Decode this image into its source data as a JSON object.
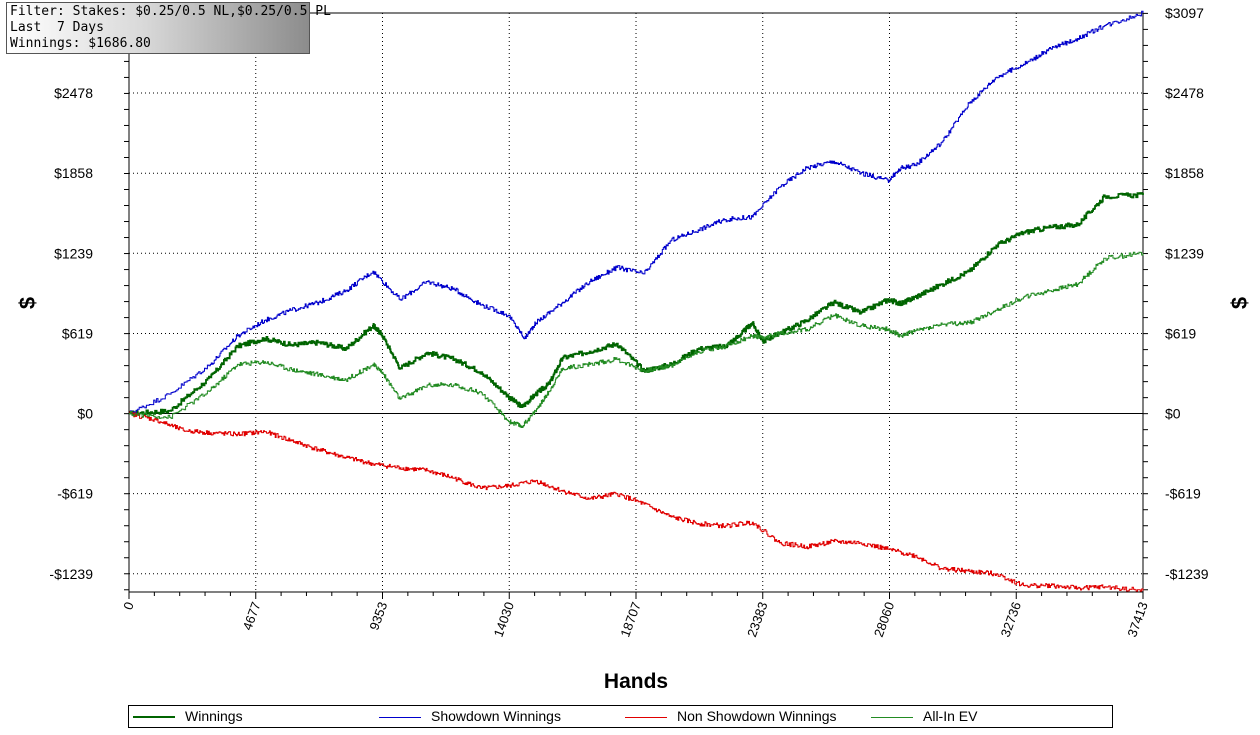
{
  "filter": {
    "line1": "Filter: Stakes: $0.25/0.5 NL,$0.25/0.5 PL",
    "line2": "Last  7 Days",
    "line3": "Winnings: $1686.80"
  },
  "chart_data": {
    "type": "line",
    "xlabel": "Hands",
    "ylabel": "$",
    "xlim": [
      0,
      37413
    ],
    "ylim": [
      -1380,
      3097
    ],
    "x_ticks": [
      0,
      4677,
      9353,
      14030,
      18707,
      23383,
      28060,
      32736,
      37413
    ],
    "y_ticks": [
      {
        "value": 3097,
        "label": "$3097"
      },
      {
        "value": 2478,
        "label": "$2478"
      },
      {
        "value": 1858,
        "label": "$1858"
      },
      {
        "value": 1239,
        "label": "$1239"
      },
      {
        "value": 619,
        "label": "$619"
      },
      {
        "value": 0,
        "label": "$0"
      },
      {
        "value": -619,
        "label": "-$619"
      },
      {
        "value": -1239,
        "label": "-$1239"
      }
    ],
    "grid": true,
    "legend_position": "bottom",
    "series": [
      {
        "name": "Winnings",
        "color": "#006400",
        "x": [
          0,
          1500,
          3000,
          4000,
          5000,
          6000,
          7000,
          8000,
          9000,
          9300,
          10000,
          11000,
          12000,
          13000,
          14000,
          14500,
          15000,
          15500,
          16000,
          17000,
          18000,
          19000,
          20000,
          21000,
          22000,
          22500,
          23000,
          23383,
          24000,
          25000,
          26000,
          27000,
          28000,
          28500,
          29000,
          30000,
          31000,
          32000,
          33000,
          34000,
          35000,
          36000,
          37413
        ],
        "values": [
          0,
          20,
          280,
          520,
          580,
          530,
          550,
          500,
          680,
          620,
          350,
          470,
          420,
          320,
          130,
          50,
          150,
          230,
          430,
          480,
          540,
          330,
          380,
          500,
          520,
          600,
          700,
          560,
          620,
          720,
          860,
          780,
          880,
          850,
          900,
          1000,
          1100,
          1300,
          1400,
          1440,
          1460,
          1680,
          1690
        ]
      },
      {
        "name": "Showdown Winnings",
        "color": "#0000cc",
        "x": [
          0,
          1500,
          3000,
          4000,
          5000,
          6000,
          7000,
          8000,
          9000,
          10000,
          11000,
          12000,
          13000,
          14000,
          14600,
          15000,
          16000,
          17000,
          18000,
          19000,
          20000,
          21000,
          22000,
          23000,
          24000,
          25000,
          26000,
          27000,
          28000,
          28500,
          29000,
          30000,
          31000,
          32000,
          33000,
          34000,
          35000,
          36000,
          37413
        ],
        "values": [
          0,
          150,
          380,
          600,
          720,
          800,
          860,
          950,
          1100,
          880,
          1020,
          960,
          840,
          760,
          580,
          700,
          860,
          1020,
          1130,
          1080,
          1340,
          1420,
          1500,
          1520,
          1750,
          1900,
          1950,
          1860,
          1800,
          1900,
          1920,
          2100,
          2400,
          2600,
          2700,
          2820,
          2900,
          3000,
          3097
        ]
      },
      {
        "name": "Non Showdown Winnings",
        "color": "#e00000",
        "x": [
          0,
          1000,
          2000,
          3000,
          4000,
          5000,
          6000,
          7000,
          8000,
          9000,
          10000,
          11000,
          12000,
          13000,
          14000,
          15000,
          16000,
          17000,
          18000,
          19000,
          20000,
          21000,
          22000,
          23000,
          24000,
          25000,
          26000,
          27000,
          28000,
          29000,
          30000,
          31000,
          32000,
          33000,
          34000,
          35000,
          36000,
          37413
        ],
        "values": [
          0,
          -50,
          -130,
          -150,
          -160,
          -140,
          -210,
          -280,
          -340,
          -390,
          -420,
          -440,
          -500,
          -580,
          -560,
          -520,
          -600,
          -660,
          -620,
          -700,
          -800,
          -850,
          -870,
          -840,
          -1000,
          -1030,
          -990,
          -1000,
          -1050,
          -1100,
          -1200,
          -1220,
          -1240,
          -1330,
          -1330,
          -1350,
          -1340,
          -1370
        ]
      },
      {
        "name": "All-In EV",
        "color": "#228b22",
        "x": [
          0,
          1500,
          3000,
          4000,
          5000,
          6000,
          7000,
          8000,
          9000,
          9300,
          10000,
          11000,
          12000,
          13000,
          14000,
          14500,
          15000,
          15500,
          16000,
          17000,
          18000,
          19000,
          20000,
          21000,
          22000,
          23000,
          23383,
          24000,
          25000,
          26000,
          27000,
          28000,
          28500,
          29000,
          30000,
          31000,
          32000,
          33000,
          34000,
          35000,
          36000,
          37413
        ],
        "values": [
          0,
          -30,
          180,
          380,
          400,
          340,
          300,
          260,
          380,
          330,
          110,
          220,
          220,
          160,
          -60,
          -100,
          20,
          170,
          350,
          380,
          420,
          330,
          370,
          480,
          520,
          600,
          580,
          620,
          650,
          760,
          680,
          650,
          600,
          640,
          690,
          700,
          800,
          900,
          950,
          1000,
          1200,
          1240
        ]
      }
    ]
  }
}
